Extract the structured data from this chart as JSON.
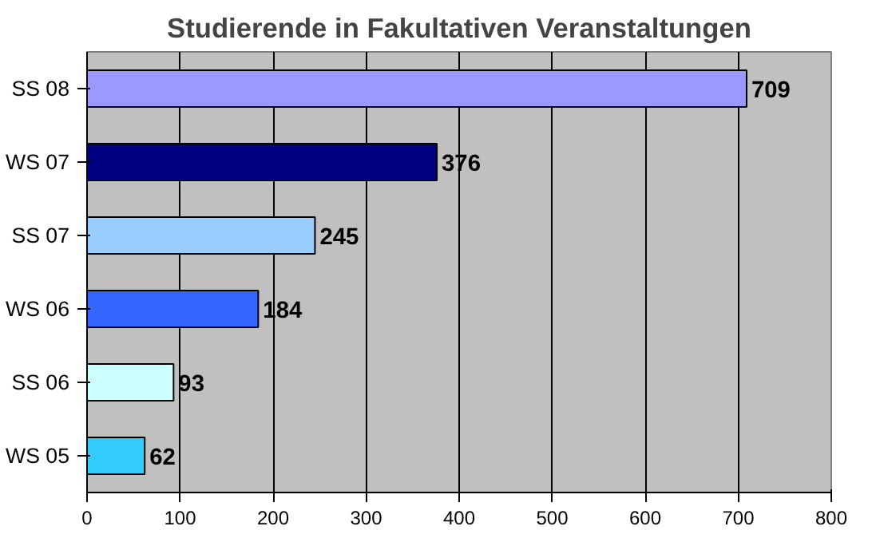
{
  "chart_data": {
    "type": "bar",
    "orientation": "horizontal",
    "title": "Studierende in Fakultativen Veranstaltungen",
    "categories": [
      "SS 08",
      "WS 07",
      "SS 07",
      "WS 06",
      "SS 06",
      "WS 05"
    ],
    "values": [
      709,
      376,
      245,
      184,
      93,
      62
    ],
    "colors": [
      "#9999ff",
      "#000080",
      "#99ccff",
      "#3366ff",
      "#ccffff",
      "#33ccff"
    ],
    "xlim": [
      0,
      800
    ],
    "xticks": [
      0,
      100,
      200,
      300,
      400,
      500,
      600,
      700,
      800
    ],
    "grid": "x",
    "data_labels": true
  }
}
